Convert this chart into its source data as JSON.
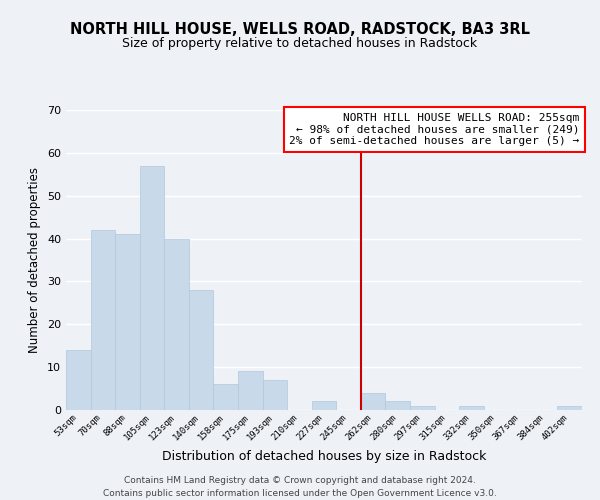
{
  "title": "NORTH HILL HOUSE, WELLS ROAD, RADSTOCK, BA3 3RL",
  "subtitle": "Size of property relative to detached houses in Radstock",
  "xlabel": "Distribution of detached houses by size in Radstock",
  "ylabel": "Number of detached properties",
  "bar_color": "#c8daea",
  "bar_edge_color": "#b0c8dc",
  "background_color": "#eef2f7",
  "grid_color": "#ffffff",
  "bin_labels": [
    "53sqm",
    "70sqm",
    "88sqm",
    "105sqm",
    "123sqm",
    "140sqm",
    "158sqm",
    "175sqm",
    "193sqm",
    "210sqm",
    "227sqm",
    "245sqm",
    "262sqm",
    "280sqm",
    "297sqm",
    "315sqm",
    "332sqm",
    "350sqm",
    "367sqm",
    "384sqm",
    "402sqm"
  ],
  "bar_heights": [
    14,
    42,
    41,
    57,
    40,
    28,
    6,
    9,
    7,
    0,
    2,
    0,
    4,
    2,
    1,
    0,
    1,
    0,
    0,
    0,
    1
  ],
  "ylim": [
    0,
    70
  ],
  "yticks": [
    0,
    10,
    20,
    30,
    40,
    50,
    60,
    70
  ],
  "vline_x": 11.5,
  "vline_color": "#cc0000",
  "annotation_text": "NORTH HILL HOUSE WELLS ROAD: 255sqm\n← 98% of detached houses are smaller (249)\n2% of semi-detached houses are larger (5) →",
  "footer_text": "Contains HM Land Registry data © Crown copyright and database right 2024.\nContains public sector information licensed under the Open Government Licence v3.0.",
  "title_fontsize": 10.5,
  "subtitle_fontsize": 9,
  "xlabel_fontsize": 9,
  "ylabel_fontsize": 8.5,
  "annotation_fontsize": 8,
  "footer_fontsize": 6.5,
  "tick_fontsize": 6.5
}
